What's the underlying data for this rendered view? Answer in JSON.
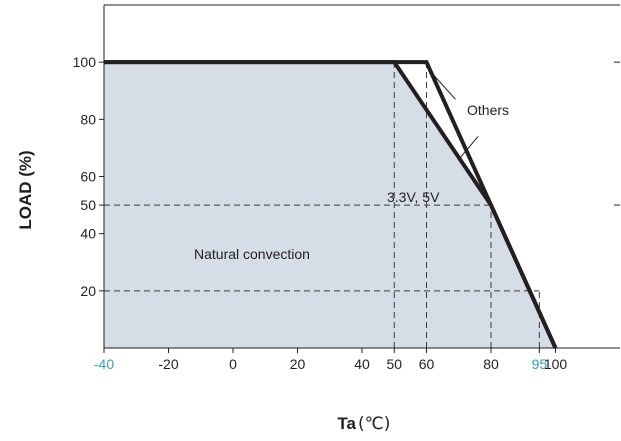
{
  "chart_data": {
    "type": "line",
    "xlabel": "Ta",
    "xlabel_unit": "(℃)",
    "ylabel": "LOAD (%)",
    "xlim": [
      -40,
      120
    ],
    "ylim": [
      0,
      120
    ],
    "x_ticks": [
      "-40",
      "-20",
      "0",
      "20",
      "40",
      "50",
      "60",
      "80",
      "95",
      "100"
    ],
    "x_tick_values": [
      -40,
      -20,
      0,
      20,
      40,
      50,
      60,
      80,
      95,
      100
    ],
    "highlighted_x_ticks": [
      "-40",
      "95"
    ],
    "y_ticks": [
      "20",
      "40",
      "50",
      "60",
      "80",
      "100"
    ],
    "y_tick_values": [
      20,
      40,
      50,
      60,
      80,
      100
    ],
    "series": [
      {
        "name": "Others",
        "x": [
          -40,
          60,
          100
        ],
        "y": [
          100,
          100,
          0
        ]
      },
      {
        "name": "3.3V, 5V",
        "x": [
          -40,
          50,
          80,
          100
        ],
        "y": [
          100,
          100,
          50,
          0
        ]
      }
    ],
    "reference_lines": {
      "vertical": [
        50,
        60,
        80,
        95
      ],
      "horizontal": [
        50,
        20
      ]
    },
    "shaded_region_label": "Natural convection",
    "grid": false,
    "colors": {
      "fill": "#d5dde6",
      "curve": "#231f20",
      "highlight_tick": "#3b9bb5"
    }
  }
}
